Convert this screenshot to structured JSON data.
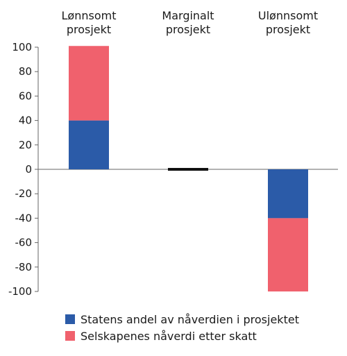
{
  "chart_data": {
    "type": "bar",
    "stacked": true,
    "categories": [
      [
        "Lønnsomt",
        "prosjekt"
      ],
      [
        "Marginalt",
        "prosjekt"
      ],
      [
        "Ulønnsomt",
        "prosjekt"
      ]
    ],
    "series": [
      {
        "name": "Statens andel av nåverdien i prosjektet",
        "color": "#2b5ba8",
        "values": [
          40,
          0,
          -40
        ]
      },
      {
        "name": "Selskapenes nåverdi etter skatt",
        "color": "#f0616d",
        "values": [
          61,
          0,
          -60
        ]
      }
    ],
    "marginal_marker": {
      "category_index": 1,
      "value": 0,
      "color": "#111111"
    },
    "yticks": [
      "100",
      "80",
      "60",
      "40",
      "20",
      "0",
      "-20",
      "-40",
      "-60",
      "-80",
      "-100"
    ],
    "ytick_values": [
      100,
      80,
      60,
      40,
      20,
      0,
      -20,
      -40,
      -60,
      -80,
      -100
    ],
    "ylim": [
      -100,
      100
    ],
    "grid": false,
    "legend_position": "bottom-left"
  }
}
